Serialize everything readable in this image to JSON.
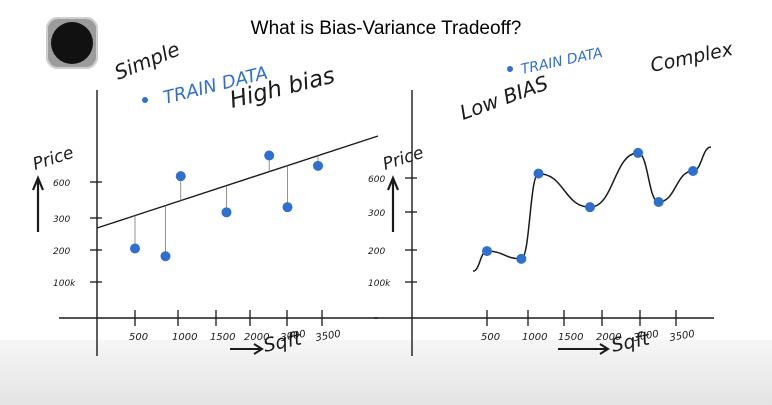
{
  "slide": {
    "title": "What is Bias-Variance Tradeoff?",
    "icon": "circle-record-icon"
  },
  "annotations": {
    "simple": "Simple",
    "train_data_left": "TRAIN DATA",
    "high_bias": "High bias",
    "train_data_right": "TRAIN DATA",
    "low_bias": "Low BIAS",
    "complex": "Complex"
  },
  "colors": {
    "points": "#2f6fd0",
    "ink": "#1a1a1a"
  },
  "chart_data": [
    {
      "type": "scatter",
      "xlabel": "Sqft",
      "ylabel": "Price",
      "x_ticks": [
        "500",
        "1000",
        "1500",
        "2000",
        "3000",
        "3500"
      ],
      "y_ticks": [
        "100k",
        "200",
        "300",
        "600"
      ],
      "y_top_label": "Price",
      "fit": "linear",
      "points": [
        {
          "x": 500,
          "y": 280
        },
        {
          "x": 1000,
          "y": 250
        },
        {
          "x": 1250,
          "y": 560
        },
        {
          "x": 2000,
          "y": 420
        },
        {
          "x": 2700,
          "y": 640
        },
        {
          "x": 3000,
          "y": 440
        },
        {
          "x": 3500,
          "y": 600
        }
      ]
    },
    {
      "type": "scatter",
      "xlabel": "Sqft",
      "ylabel": "Price",
      "x_ticks": [
        "500",
        "1000",
        "1500",
        "2000",
        "3000",
        "3500"
      ],
      "y_ticks": [
        "100k",
        "200",
        "300",
        "600"
      ],
      "y_top_label": "Price",
      "fit": "overfit-curve",
      "points": [
        {
          "x": 500,
          "y": 270
        },
        {
          "x": 1000,
          "y": 240
        },
        {
          "x": 1250,
          "y": 570
        },
        {
          "x": 2000,
          "y": 440
        },
        {
          "x": 2700,
          "y": 650
        },
        {
          "x": 3000,
          "y": 460
        },
        {
          "x": 3500,
          "y": 580
        }
      ]
    }
  ]
}
